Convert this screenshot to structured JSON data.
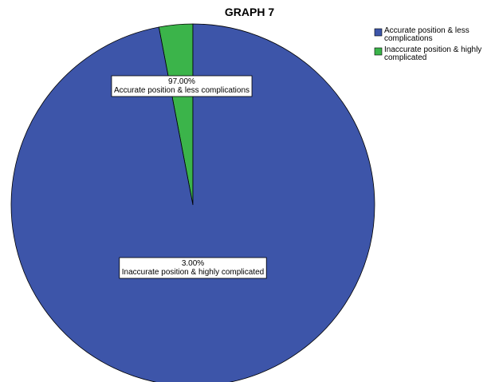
{
  "chart_data": {
    "type": "pie",
    "title": "GRAPH 7",
    "slices": [
      {
        "name": "Accurate position & less complications",
        "value": 97.0,
        "value_label": "97.00%",
        "color": "#3d55a9"
      },
      {
        "name": "Inaccurate position & highly complicated",
        "value": 3.0,
        "value_label": "3.00%",
        "color": "#3bb44a"
      }
    ],
    "legend": {
      "placement": "top-right",
      "entries": [
        {
          "lines": [
            "Accurate position & less",
            "complications"
          ],
          "color": "#3d55a9"
        },
        {
          "lines": [
            "Inaccurate position & highly",
            "complicated"
          ],
          "color": "#3bb44a"
        }
      ]
    }
  }
}
